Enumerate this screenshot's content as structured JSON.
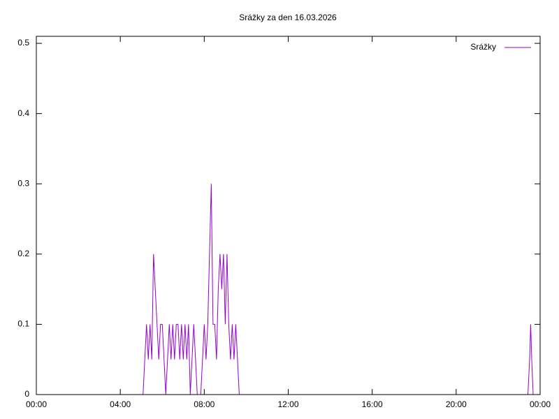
{
  "chart_data": {
    "type": "line",
    "title": "Srážky za den 16.03.2026",
    "x": [
      0,
      300,
      305,
      310,
      315,
      320,
      325,
      330,
      335,
      340,
      345,
      350,
      355,
      360,
      365,
      370,
      375,
      380,
      385,
      390,
      395,
      400,
      405,
      410,
      415,
      420,
      425,
      430,
      435,
      440,
      445,
      450,
      455,
      460,
      465,
      470,
      475,
      480,
      485,
      490,
      495,
      500,
      505,
      510,
      515,
      520,
      525,
      530,
      535,
      540,
      545,
      550,
      555,
      560,
      565,
      570,
      575,
      580,
      585,
      590,
      1405,
      1410,
      1413,
      1416,
      1420,
      1440
    ],
    "series": [
      {
        "name": "Srážky",
        "color": "#9400d3",
        "values": [
          0,
          0,
          0,
          0.05,
          0.1,
          0.05,
          0.1,
          0.05,
          0.2,
          0.15,
          0.1,
          0.05,
          0.1,
          0.1,
          0.05,
          0,
          0.05,
          0.1,
          0.05,
          0.1,
          0.05,
          0.1,
          0.1,
          0.05,
          0.1,
          0.05,
          0.1,
          0.05,
          0.1,
          0,
          0.05,
          0.1,
          0.05,
          0,
          0,
          0,
          0.05,
          0.1,
          0.05,
          0.1,
          0.2,
          0.3,
          0.1,
          0.1,
          0.05,
          0.15,
          0.2,
          0.15,
          0.2,
          0.1,
          0.2,
          0.1,
          0.05,
          0.1,
          0.05,
          0.1,
          0.05,
          0,
          0,
          0,
          0,
          0.05,
          0.1,
          0.05,
          0,
          0
        ]
      }
    ],
    "xlim": [
      0,
      1440
    ],
    "xticks": [
      {
        "value": 0,
        "label": "00:00"
      },
      {
        "value": 240,
        "label": "04:00"
      },
      {
        "value": 480,
        "label": "08:00"
      },
      {
        "value": 720,
        "label": "12:00"
      },
      {
        "value": 960,
        "label": "16:00"
      },
      {
        "value": 1200,
        "label": "20:00"
      },
      {
        "value": 1440,
        "label": "00:00"
      }
    ],
    "ylim": [
      0,
      0.51
    ],
    "yticks": [
      0,
      0.1,
      0.2,
      0.3,
      0.4,
      0.5
    ],
    "legend": "upper right"
  }
}
